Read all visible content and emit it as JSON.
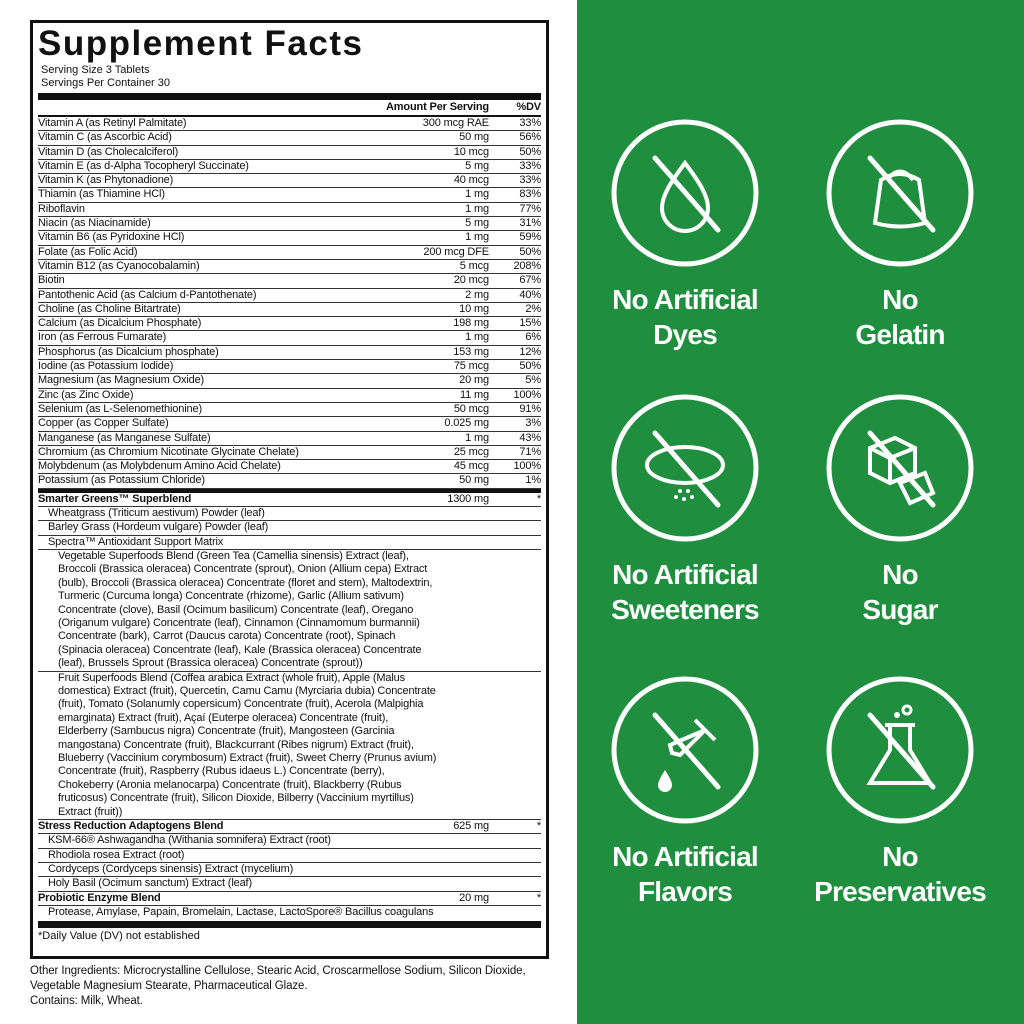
{
  "facts": {
    "title": "Supplement Facts",
    "serving_size": "Serving Size 3 Tablets",
    "servings_per_container": "Servings Per Container 30",
    "col_amount": "Amount Per Serving",
    "col_dv": "%DV",
    "nutrients": [
      {
        "name": "Vitamin A (as Retinyl Palmitate)",
        "amount": "300 mcg RAE",
        "dv": "33%"
      },
      {
        "name": "Vitamin C (as Ascorbic Acid)",
        "amount": "50 mg",
        "dv": "56%"
      },
      {
        "name": "Vitamin D (as Cholecalciferol)",
        "amount": "10 mcg",
        "dv": "50%"
      },
      {
        "name": "Vitamin E (as d-Alpha Tocopheryl Succinate)",
        "amount": "5 mg",
        "dv": "33%"
      },
      {
        "name": "Vitamin K (as Phytonadione)",
        "amount": "40 mcg",
        "dv": "33%"
      },
      {
        "name": "Thiamin (as Thiamine HCl)",
        "amount": "1 mg",
        "dv": "83%"
      },
      {
        "name": "Riboflavin",
        "amount": "1 mg",
        "dv": "77%"
      },
      {
        "name": "Niacin (as Niacinamide)",
        "amount": "5 mg",
        "dv": "31%"
      },
      {
        "name": "Vitamin B6 (as Pyridoxine HCl)",
        "amount": "1 mg",
        "dv": "59%"
      },
      {
        "name": "Folate (as Folic Acid)",
        "amount": "200 mcg DFE",
        "dv": "50%"
      },
      {
        "name": "Vitamin B12 (as Cyanocobalamin)",
        "amount": "5 mcg",
        "dv": "208%"
      },
      {
        "name": "Biotin",
        "amount": "20 mcg",
        "dv": "67%"
      },
      {
        "name": "Pantothenic Acid (as Calcium d-Pantothenate)",
        "amount": "2 mg",
        "dv": "40%"
      },
      {
        "name": "Choline (as Choline Bitartrate)",
        "amount": "10 mg",
        "dv": "2%"
      },
      {
        "name": "Calcium (as Dicalcium Phosphate)",
        "amount": "198 mg",
        "dv": "15%"
      },
      {
        "name": "Iron (as Ferrous Fumarate)",
        "amount": "1 mg",
        "dv": "6%"
      },
      {
        "name": "Phosphorus (as Dicalcium phosphate)",
        "amount": "153 mg",
        "dv": "12%"
      },
      {
        "name": "Iodine (as Potassium Iodide)",
        "amount": "75 mcg",
        "dv": "50%"
      },
      {
        "name": "Magnesium (as Magnesium Oxide)",
        "amount": "20 mg",
        "dv": "5%"
      },
      {
        "name": "Zinc (as Zinc Oxide)",
        "amount": "11 mg",
        "dv": "100%"
      },
      {
        "name": "Selenium (as L-Selenomethionine)",
        "amount": "50 mcg",
        "dv": "91%"
      },
      {
        "name": "Copper (as Copper Sulfate)",
        "amount": "0.025 mg",
        "dv": "3%"
      },
      {
        "name": "Manganese (as Manganese Sulfate)",
        "amount": "1 mg",
        "dv": "43%"
      },
      {
        "name": "Chromium (as Chromium Nicotinate Glycinate Chelate)",
        "amount": "25 mcg",
        "dv": "71%"
      },
      {
        "name": "Molybdenum (as Molybdenum Amino Acid Chelate)",
        "amount": "45 mcg",
        "dv": "100%"
      },
      {
        "name": "Potassium (as Potassium Chloride)",
        "amount": "50 mg",
        "dv": "1%"
      }
    ],
    "greens": {
      "name": "Smarter Greens™ Superblend",
      "amount": "1300 mg",
      "dv": "*",
      "items": [
        "Wheatgrass (Triticum aestivum) Powder (leaf)",
        "Barley Grass (Hordeum vulgare) Powder (leaf)",
        "Spectra™ Antioxidant Support Matrix"
      ],
      "vegetable": "Vegetable Superfoods Blend (Green Tea (Camellia sinensis) Extract (leaf), Broccoli (Brassica oleracea) Concentrate (sprout), Onion (Allium cepa) Extract (bulb), Broccoli (Brassica oleracea) Concentrate (floret and stem), Maltodextrin, Turmeric (Curcuma longa) Concentrate (rhizome), Garlic (Allium sativum) Concentrate (clove), Basil (Ocimum basilicum) Concentrate (leaf), Oregano (Origanum vulgare) Concentrate (leaf), Cinnamon (Cinnamomum burmannii) Concentrate (bark), Carrot (Daucus carota) Concentrate (root), Spinach (Spinacia oleracea) Concentrate (leaf), Kale (Brassica oleracea) Concentrate (leaf), Brussels Sprout (Brassica oleracea) Concentrate (sprout))",
      "fruit": "Fruit Superfoods Blend (Coffea arabica Extract (whole fruit), Apple (Malus domestica) Extract (fruit), Quercetin, Camu Camu (Myrciaria dubia) Concentrate (fruit), Tomato (Solanumly copersicum) Concentrate (fruit), Acerola (Malpighia emarginata) Extract (fruit), Açaí (Euterpe oleracea) Concentrate (fruit), Elderberry (Sambucus nigra) Concentrate (fruit), Mangosteen (Garcinia mangostana) Concentrate (fruit), Blackcurrant (Ribes nigrum) Extract (fruit), Blueberry (Vaccinium corymbosum) Extract (fruit), Sweet Cherry (Prunus avium) Concentrate (fruit), Raspberry (Rubus idaeus L.) Concentrate (berry), Chokeberry (Aronia melanocarpa) Concentrate (fruit), Blackberry (Rubus fruticosus) Concentrate (fruit), Silicon Dioxide, Bilberry (Vaccinium myrtillus) Extract (fruit))"
    },
    "stress": {
      "name": "Stress Reduction Adaptogens Blend",
      "amount": "625 mg",
      "dv": "*",
      "items": [
        "KSM-66® Ashwagandha (Withania somnifera) Extract (root)",
        "Rhodiola rosea Extract (root)",
        "Cordyceps (Cordyceps sinensis) Extract (mycelium)",
        "Holy Basil (Ocimum sanctum) Extract (leaf)"
      ]
    },
    "probiotic": {
      "name": "Probiotic Enzyme Blend",
      "amount": "20 mg",
      "dv": "*",
      "items": [
        "Protease, Amylase, Papain, Bromelain, Lactase, LactoSpore® Bacillus coagulans"
      ]
    },
    "footnote": "*Daily Value (DV) not established"
  },
  "other_ingredients": "Other Ingredients: Microcrystalline Cellulose, Stearic Acid, Croscarmellose Sodium, Silicon Dioxide, Vegetable Magnesium Stearate, Pharmaceutical Glaze.",
  "contains": "Contains: Milk, Wheat.",
  "badges": [
    {
      "icon": "no-drop-icon",
      "line1": "No Artificial",
      "line2": "Dyes"
    },
    {
      "icon": "no-gelatin-icon",
      "line1": "No",
      "line2": "Gelatin"
    },
    {
      "icon": "no-sweetener-icon",
      "line1": "No Artificial",
      "line2": "Sweeteners"
    },
    {
      "icon": "no-sugar-cube-icon",
      "line1": "No",
      "line2": "Sugar"
    },
    {
      "icon": "no-dropper-icon",
      "line1": "No Artificial",
      "line2": "Flavors"
    },
    {
      "icon": "no-flask-icon",
      "line1": "No",
      "line2": "Preservatives"
    }
  ],
  "colors": {
    "panel_green": "#1f8f3f",
    "text": "#111111"
  }
}
